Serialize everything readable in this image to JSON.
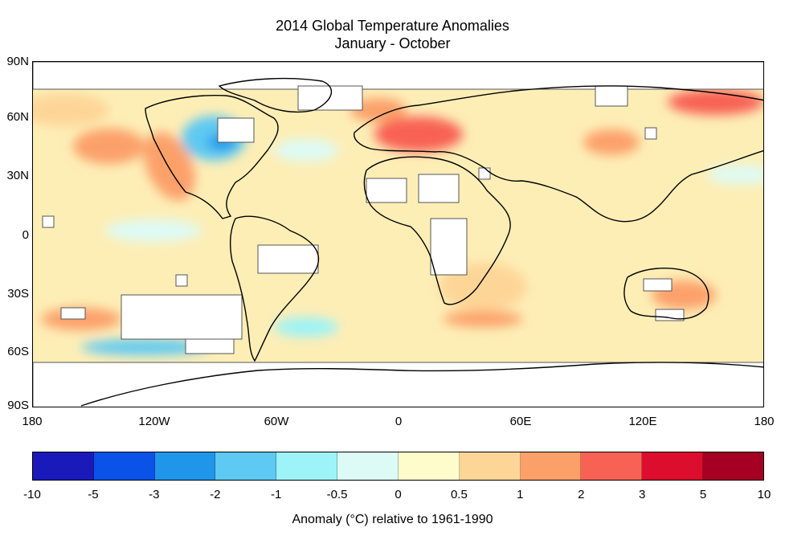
{
  "title": "2014 Global Temperature Anomalies",
  "subtitle": "January - October",
  "map": {
    "lat_labels": [
      "90N",
      "60N",
      "30N",
      "0",
      "30S",
      "60S",
      "90S"
    ],
    "lon_labels": [
      "180",
      "120W",
      "60W",
      "0",
      "60E",
      "120E",
      "180"
    ],
    "ocean_base_color": "#fdeeb6",
    "no_data_color": "#ffffff",
    "coastline_color": "#000000"
  },
  "colorbar": {
    "tick_labels": [
      "-10",
      "-5",
      "-3",
      "-2",
      "-1",
      "-0.5",
      "0",
      "0.5",
      "1",
      "2",
      "3",
      "5",
      "10"
    ],
    "colors": [
      "#1a1aba",
      "#0a52e8",
      "#1f96ea",
      "#5ec9f2",
      "#9df3f8",
      "#ddfbf6",
      "#fffccb",
      "#fdd597",
      "#fca06a",
      "#f86254",
      "#dd0d2d",
      "#a50024"
    ],
    "caption": "Anomaly (°C) relative to 1961-1990"
  }
}
